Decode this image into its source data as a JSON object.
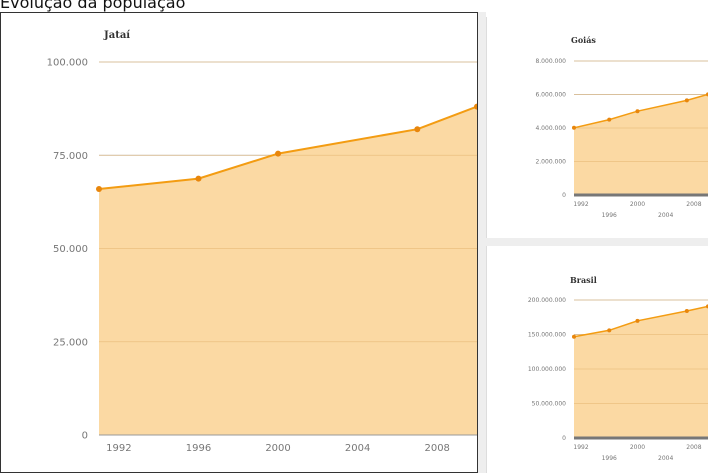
{
  "page": {
    "title": "Evolução da população"
  },
  "colors": {
    "line": "#f39c12",
    "area": "#fbd9a3",
    "grid": "#cccccc",
    "point": "#e8860c"
  },
  "chart_data": [
    {
      "id": "main",
      "type": "area",
      "title": "Jataí",
      "x": [
        1991,
        1996,
        2000,
        2007,
        2010
      ],
      "y": [
        65959,
        68742,
        75451,
        81972,
        88048
      ],
      "xticks": [
        "1992",
        "1996",
        "2000",
        "2004",
        "2008"
      ],
      "xtick_values": [
        1992,
        1996,
        2000,
        2004,
        2008
      ],
      "yticks": [
        "0",
        "25.000",
        "50.000",
        "75.000",
        "100.000"
      ],
      "ytick_values": [
        0,
        25000,
        50000,
        75000,
        100000
      ],
      "xlim": [
        1991,
        2010
      ],
      "ylim": [
        0,
        100000
      ],
      "grid": true
    },
    {
      "id": "goias",
      "type": "area",
      "title": "Goiás",
      "x": [
        1991,
        1996,
        2000,
        2007,
        2010
      ],
      "y": [
        4012562,
        4501538,
        5003228,
        5647035,
        6003788
      ],
      "xticks_row1": [
        "1992",
        "2000",
        "2008"
      ],
      "xticks_row1_values": [
        1992,
        2000,
        2008
      ],
      "xticks_row2": [
        "1996",
        "2004"
      ],
      "xticks_row2_values": [
        1996,
        2004
      ],
      "yticks": [
        "0",
        "2.000.000",
        "4.000.000",
        "6.000.000",
        "8.000.000"
      ],
      "ytick_values": [
        0,
        2000000,
        4000000,
        6000000,
        8000000
      ],
      "xlim": [
        1991,
        2010
      ],
      "ylim": [
        0,
        8000000
      ],
      "grid": true
    },
    {
      "id": "brasil",
      "type": "area",
      "title": "Brasil",
      "x": [
        1991,
        1996,
        2000,
        2007,
        2010
      ],
      "y": [
        146825475,
        156032944,
        169799170,
        183987291,
        190755799
      ],
      "xticks_row1": [
        "1992",
        "2000",
        "2008"
      ],
      "xticks_row1_values": [
        1992,
        2000,
        2008
      ],
      "xticks_row2": [
        "1996",
        "2004"
      ],
      "xticks_row2_values": [
        1996,
        2004
      ],
      "yticks": [
        "0",
        "50.000.000",
        "100.000.000",
        "150.000.000",
        "200.000.000"
      ],
      "ytick_values": [
        0,
        50000000,
        100000000,
        150000000,
        200000000
      ],
      "xlim": [
        1991,
        2010
      ],
      "ylim": [
        0,
        200000000
      ],
      "grid": true
    }
  ]
}
